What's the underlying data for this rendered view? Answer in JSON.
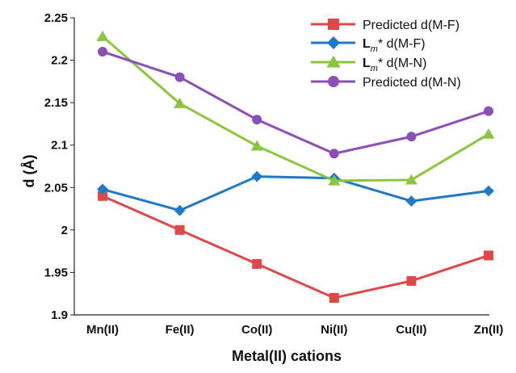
{
  "chart_data": {
    "type": "line",
    "categories": [
      "Mn(II)",
      "Fe(II)",
      "Co(II)",
      "Ni(II)",
      "Cu(II)",
      "Zn(II)"
    ],
    "xlabel": "Metal(II) cations",
    "ylabel": "d (Å)",
    "ylim": [
      1.9,
      2.25
    ],
    "yticks": [
      1.9,
      1.95,
      2.0,
      2.05,
      2.1,
      2.15,
      2.2,
      2.25
    ],
    "ytick_labels": [
      "1.9",
      "1.95",
      "2",
      "2.05",
      "2.1",
      "2.15",
      "2.2",
      "2.25"
    ],
    "grid": false,
    "legend_position": "top-right",
    "series": [
      {
        "name": "Predicted d(M-F)",
        "legend": {
          "main": "Predicted d(M-F)"
        },
        "marker": "square",
        "color": "#e04848",
        "values": [
          2.04,
          2.0,
          1.96,
          1.92,
          1.94,
          1.97
        ]
      },
      {
        "name": "L m * d(M-F)",
        "legend": {
          "bold": "L",
          "sub": "m",
          "main": "* d(M-F)"
        },
        "marker": "diamond",
        "color": "#1f78c8",
        "values": [
          2.048,
          2.023,
          2.063,
          2.061,
          2.034,
          2.046
        ]
      },
      {
        "name": "L m * d(M-N)",
        "legend": {
          "bold": "L",
          "sub": "m",
          "main": "* d(M-N)"
        },
        "marker": "triangle",
        "color": "#8cc63f",
        "values": [
          2.228,
          2.149,
          2.099,
          2.058,
          2.059,
          2.113
        ]
      },
      {
        "name": "Predicted d(M-N)",
        "legend": {
          "main": "Predicted d(M-N)"
        },
        "marker": "circle",
        "color": "#8c4fb8",
        "values": [
          2.21,
          2.18,
          2.13,
          2.09,
          2.11,
          2.14
        ]
      }
    ]
  }
}
